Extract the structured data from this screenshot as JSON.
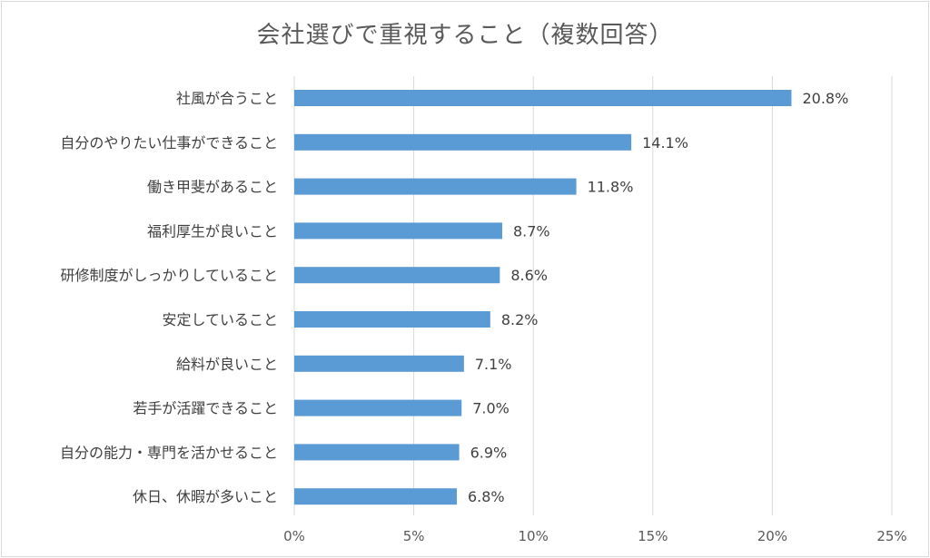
{
  "chart_data": {
    "type": "bar",
    "orientation": "horizontal",
    "title": "会社選びで重視すること（複数回答）",
    "categories": [
      "社風が合うこと",
      "自分のやりたい仕事ができること",
      "働き甲斐があること",
      "福利厚生が良いこと",
      "研修制度がしっかりしていること",
      "安定していること",
      "給料が良いこと",
      "若手が活躍できること",
      "自分の能力・専門を活かせること",
      "休日、休暇が多いこと"
    ],
    "values": [
      20.8,
      14.1,
      11.8,
      8.7,
      8.6,
      8.2,
      7.1,
      7.0,
      6.9,
      6.8
    ],
    "data_labels": [
      "20.8%",
      "14.1%",
      "11.8%",
      "8.7%",
      "8.6%",
      "8.2%",
      "7.1%",
      "7.0%",
      "6.9%",
      "6.8%"
    ],
    "xlim": [
      0,
      25
    ],
    "xticks": [
      0,
      5,
      10,
      15,
      20,
      25
    ],
    "xtick_labels": [
      "0%",
      "5%",
      "10%",
      "15%",
      "20%",
      "25%"
    ],
    "grid": true,
    "legend": "none",
    "bar_color": "#5b9bd5"
  }
}
